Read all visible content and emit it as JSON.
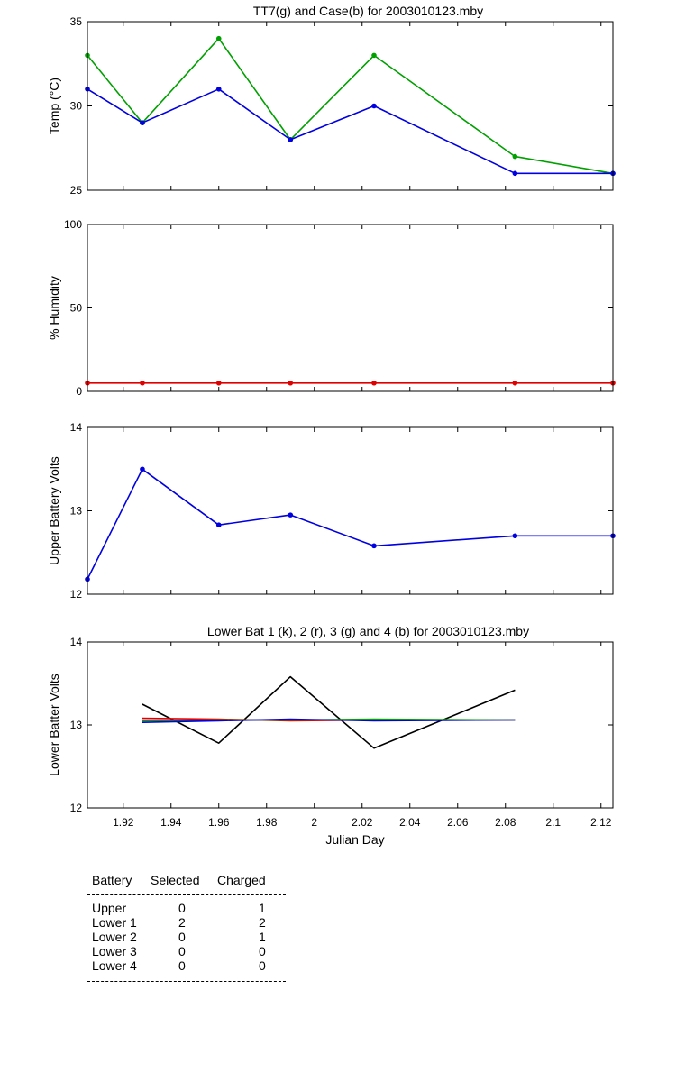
{
  "chart_data": [
    {
      "type": "line",
      "title": "TT7(g) and Case(b) for 2003010123.mby",
      "xlabel": "",
      "ylabel": "Temp  (°C)",
      "xlim": [
        1.905,
        2.125
      ],
      "ylim": [
        25,
        35
      ],
      "yticks": [
        "25",
        "30",
        "35"
      ],
      "grid": false,
      "series": [
        {
          "color": "#00a000",
          "markers": true,
          "x": [
            1.905,
            1.928,
            1.96,
            1.99,
            2.025,
            2.084,
            2.125
          ],
          "y": [
            33,
            29,
            34,
            28,
            33,
            27,
            26
          ]
        },
        {
          "color": "#0000e0",
          "markers": true,
          "x": [
            1.905,
            1.928,
            1.96,
            1.99,
            2.025,
            2.084,
            2.125
          ],
          "y": [
            31,
            29,
            31,
            28,
            30,
            26,
            26
          ]
        }
      ]
    },
    {
      "type": "line",
      "title": "",
      "xlabel": "",
      "ylabel": "% Humidity",
      "xlim": [
        1.905,
        2.125
      ],
      "ylim": [
        0,
        100
      ],
      "yticks": [
        "0",
        "50",
        "100"
      ],
      "grid": false,
      "series": [
        {
          "color": "#e00000",
          "markers": true,
          "x": [
            1.905,
            1.928,
            1.96,
            1.99,
            2.025,
            2.084,
            2.125
          ],
          "y": [
            5,
            5,
            5,
            5,
            5,
            5,
            5
          ]
        }
      ]
    },
    {
      "type": "line",
      "title": "",
      "xlabel": "",
      "ylabel": "Upper Battery Volts",
      "xlim": [
        1.905,
        2.125
      ],
      "ylim": [
        12,
        14
      ],
      "yticks": [
        "12",
        "13",
        "14"
      ],
      "grid": false,
      "series": [
        {
          "color": "#0000e0",
          "markers": true,
          "x": [
            1.905,
            1.928,
            1.96,
            1.99,
            2.025,
            2.084,
            2.125
          ],
          "y": [
            12.18,
            13.5,
            12.83,
            12.95,
            12.58,
            12.7,
            12.7
          ]
        }
      ]
    },
    {
      "type": "line",
      "title": "Lower Bat 1 (k), 2 (r), 3 (g) and 4 (b) for 2003010123.mby",
      "xlabel": "Julian Day",
      "ylabel": "Lower Batter Volts",
      "xlim": [
        1.905,
        2.125
      ],
      "ylim": [
        12,
        14
      ],
      "yticks": [
        "12",
        "13",
        "14"
      ],
      "xticks": [
        "1.92",
        "1.94",
        "1.96",
        "1.98",
        "2",
        "2.02",
        "2.04",
        "2.06",
        "2.08",
        "2.1",
        "2.12"
      ],
      "xtick_values": [
        1.92,
        1.94,
        1.96,
        1.98,
        2.0,
        2.02,
        2.04,
        2.06,
        2.08,
        2.1,
        2.12
      ],
      "grid": false,
      "series": [
        {
          "color": "#000000",
          "markers": false,
          "x": [
            1.928,
            1.96,
            1.99,
            2.025,
            2.084
          ],
          "y": [
            13.25,
            12.78,
            13.58,
            12.72,
            13.42
          ]
        },
        {
          "color": "#e00000",
          "markers": false,
          "x": [
            1.928,
            1.96,
            1.99,
            2.025,
            2.084
          ],
          "y": [
            13.08,
            13.07,
            13.05,
            13.06,
            13.06
          ]
        },
        {
          "color": "#00a000",
          "markers": false,
          "x": [
            1.928,
            1.96,
            1.99,
            2.025,
            2.084
          ],
          "y": [
            13.05,
            13.06,
            13.06,
            13.07,
            13.06
          ]
        },
        {
          "color": "#0000e0",
          "markers": false,
          "x": [
            1.928,
            1.96,
            1.99,
            2.025,
            2.084
          ],
          "y": [
            13.03,
            13.05,
            13.07,
            13.05,
            13.06
          ]
        }
      ]
    }
  ],
  "battery_table": {
    "headers": [
      "Battery",
      "Selected",
      "Charged"
    ],
    "rows": [
      {
        "battery": "Upper",
        "selected": "0",
        "charged": "1"
      },
      {
        "battery": "Lower 1",
        "selected": "2",
        "charged": "2"
      },
      {
        "battery": "Lower 2",
        "selected": "0",
        "charged": "1"
      },
      {
        "battery": "Lower 3",
        "selected": "0",
        "charged": "0"
      },
      {
        "battery": "Lower 4",
        "selected": "0",
        "charged": "0"
      }
    ]
  }
}
